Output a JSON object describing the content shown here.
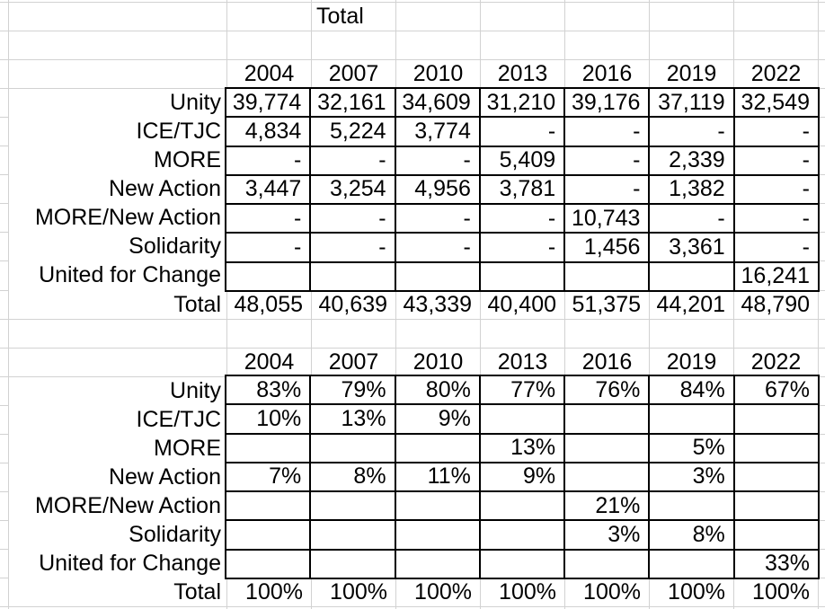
{
  "sheet": {
    "top_header": "Total",
    "years": [
      "2004",
      "2007",
      "2010",
      "2013",
      "2016",
      "2019",
      "2022"
    ],
    "row_labels": [
      "Unity",
      "ICE/TJC",
      "MORE",
      "New Action",
      "MORE/New Action",
      "Solidarity",
      "United for Change"
    ],
    "total_label": "Total",
    "counts": {
      "rows": [
        [
          "39,774",
          "32,161",
          "34,609",
          "31,210",
          "39,176",
          "37,119",
          "32,549"
        ],
        [
          "4,834",
          "5,224",
          "3,774",
          "-",
          "-",
          "-",
          "-"
        ],
        [
          "-",
          "-",
          "-",
          "5,409",
          "-",
          "2,339",
          "-"
        ],
        [
          "3,447",
          "3,254",
          "4,956",
          "3,781",
          "-",
          "1,382",
          "-"
        ],
        [
          "-",
          "-",
          "-",
          "-",
          "10,743",
          "-",
          "-"
        ],
        [
          "-",
          "-",
          "-",
          "-",
          "1,456",
          "3,361",
          "-"
        ],
        [
          "",
          "",
          "",
          "",
          "",
          "",
          "16,241"
        ]
      ],
      "total": [
        "48,055",
        "40,639",
        "43,339",
        "40,400",
        "51,375",
        "44,201",
        "48,790"
      ]
    },
    "percents": {
      "rows": [
        [
          "83%",
          "79%",
          "80%",
          "77%",
          "76%",
          "84%",
          "67%"
        ],
        [
          "10%",
          "13%",
          "9%",
          "",
          "",
          "",
          ""
        ],
        [
          "",
          "",
          "",
          "13%",
          "",
          "5%",
          ""
        ],
        [
          "7%",
          "8%",
          "11%",
          "9%",
          "",
          "3%",
          ""
        ],
        [
          "",
          "",
          "",
          "",
          "21%",
          "",
          ""
        ],
        [
          "",
          "",
          "",
          "",
          "3%",
          "8%",
          ""
        ],
        [
          "",
          "",
          "",
          "",
          "",
          "",
          "33%"
        ]
      ],
      "total": [
        "100%",
        "100%",
        "100%",
        "100%",
        "100%",
        "100%",
        "100%"
      ]
    },
    "colors": {
      "grid_line": "#d2d2d2",
      "table_border": "#000000",
      "text": "#000000",
      "background": "#ffffff"
    }
  }
}
